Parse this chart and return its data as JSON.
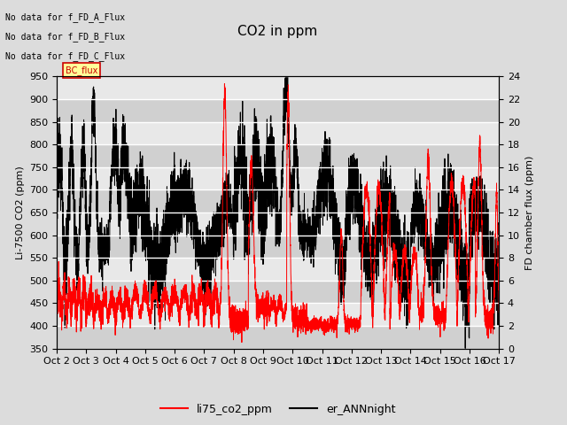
{
  "title": "CO2 in ppm",
  "ylabel_left": "Li-7500 CO2 (ppm)",
  "ylabel_right": "FD chamber flux (ppm)",
  "ylim_left": [
    350,
    950
  ],
  "ylim_right": [
    0,
    24
  ],
  "yticks_left": [
    350,
    400,
    450,
    500,
    550,
    600,
    650,
    700,
    750,
    800,
    850,
    900,
    950
  ],
  "yticks_right": [
    0,
    2,
    4,
    6,
    8,
    10,
    12,
    14,
    16,
    18,
    20,
    22,
    24
  ],
  "xlim": [
    0,
    15
  ],
  "xtick_labels": [
    "Oct 2",
    "Oct 3",
    "Oct 4",
    "Oct 5",
    "Oct 6",
    "Oct 7",
    "Oct 8",
    "Oct 9",
    "Oct 10",
    "Oct 11",
    "Oct 12",
    "Oct 13",
    "Oct 14",
    "Oct 15",
    "Oct 16",
    "Oct 17"
  ],
  "background_color": "#dcdcdc",
  "plot_bg_color": "#e8e8e8",
  "stripe_color": "#d0d0d0",
  "grid_color": "#ffffff",
  "red_color": "#ff0000",
  "black_color": "#000000",
  "legend_labels": [
    "li75_co2_ppm",
    "er_ANNnight"
  ],
  "annotations": [
    "No data for f_FD_A_Flux",
    "No data for f_FD_B_Flux",
    "No data for f_FD_C_Flux"
  ],
  "bc_flux_label": "BC_flux",
  "bc_flux_color": "#ffff99",
  "bc_flux_edge_color": "#cc0000",
  "figsize": [
    6.4,
    4.8
  ],
  "dpi": 100
}
